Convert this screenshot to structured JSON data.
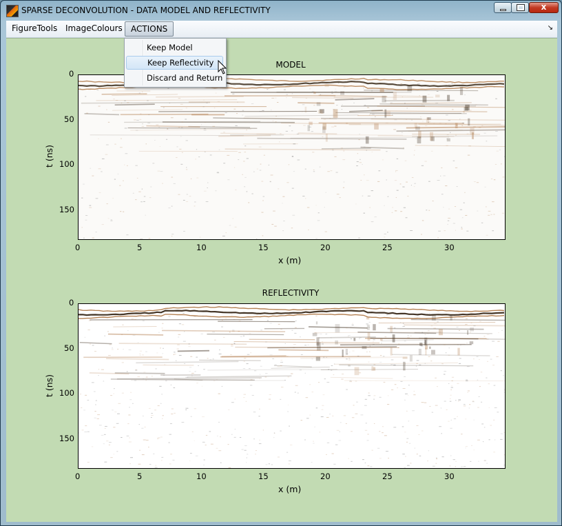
{
  "window": {
    "title": "SPARSE DECONVOLUTION - DATA MODEL AND REFLECTIVITY",
    "close_glyph": "x"
  },
  "menubar": {
    "items": [
      "FigureTools",
      "ImageColours",
      "ACTIONS"
    ],
    "overflow_glyph": "↘"
  },
  "actions_menu": {
    "items": [
      "Keep Model",
      "Keep Reflectivity",
      "Discard and Return"
    ],
    "hovered": "Keep Reflectivity"
  },
  "colors": {
    "figure_bg": "#c2dbb3",
    "trace_dark": "#3a2a1a",
    "trace_warm": "#b07a4a"
  },
  "chart_data": [
    {
      "type": "heatmap",
      "title": "MODEL",
      "xlabel": "x (m)",
      "ylabel": "t (ns)",
      "xlim": [
        0,
        34.5
      ],
      "ylim": [
        183,
        0
      ],
      "xticks": [
        "0",
        "5",
        "10",
        "15",
        "20",
        "25",
        "30"
      ],
      "yticks": [
        "0",
        "50",
        "100",
        "150"
      ],
      "colormap": "brown-white-black seismic",
      "features": [
        {
          "label": "strong reflector",
          "t": 10
        },
        {
          "label": "dipping events",
          "t_range": [
            20,
            80
          ]
        }
      ]
    },
    {
      "type": "heatmap",
      "title": "REFLECTIVITY",
      "xlabel": "x (m)",
      "ylabel": "t (ns)",
      "xlim": [
        0,
        34.5
      ],
      "ylim": [
        183,
        0
      ],
      "xticks": [
        "0",
        "5",
        "10",
        "15",
        "20",
        "25",
        "30"
      ],
      "yticks": [
        "0",
        "50",
        "100",
        "150"
      ],
      "colormap": "brown-white-black seismic",
      "features": [
        {
          "label": "strong reflector",
          "t": 10
        },
        {
          "label": "dipping events",
          "t_range": [
            20,
            80
          ]
        }
      ]
    }
  ]
}
